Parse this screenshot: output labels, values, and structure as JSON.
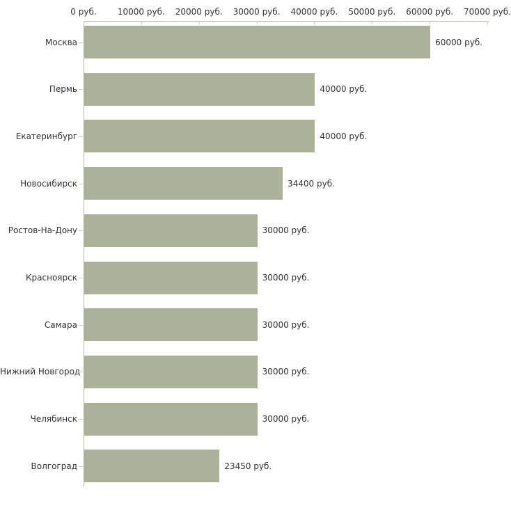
{
  "chart_data": {
    "type": "bar",
    "orientation": "horizontal",
    "title": "",
    "xlabel": "",
    "ylabel": "",
    "grid": false,
    "legend": false,
    "categories": [
      "Москва",
      "Пермь",
      "Екатеринбург",
      "Новосибирск",
      "Ростов-На-Дону",
      "Красноярск",
      "Самара",
      "Нижний Новгород",
      "Челябинск",
      "Волгоград"
    ],
    "values": [
      60000,
      40000,
      40000,
      34400,
      30000,
      30000,
      30000,
      30000,
      30000,
      23450
    ],
    "value_labels": [
      "60000 руб.",
      "40000 руб.",
      "40000 руб.",
      "34400 руб.",
      "30000 руб.",
      "30000 руб.",
      "30000 руб.",
      "30000 руб.",
      "30000 руб.",
      "23450 руб."
    ],
    "x_axis": {
      "position": "top",
      "unit": "руб.",
      "xlim": [
        0,
        70000
      ],
      "tick_values": [
        0,
        10000,
        20000,
        30000,
        40000,
        50000,
        60000,
        70000
      ],
      "tick_labels": [
        "0 руб.",
        "10000 руб.",
        "20000 руб.",
        "30000 руб.",
        "40000 руб.",
        "50000 руб.",
        "60000 руб.",
        "70000 руб."
      ]
    },
    "colors": {
      "bar": "#acb29a",
      "axis_line": "#b3b5a5",
      "tick": "#ccceb4",
      "text": "#333333",
      "background": "#ffffff"
    }
  }
}
